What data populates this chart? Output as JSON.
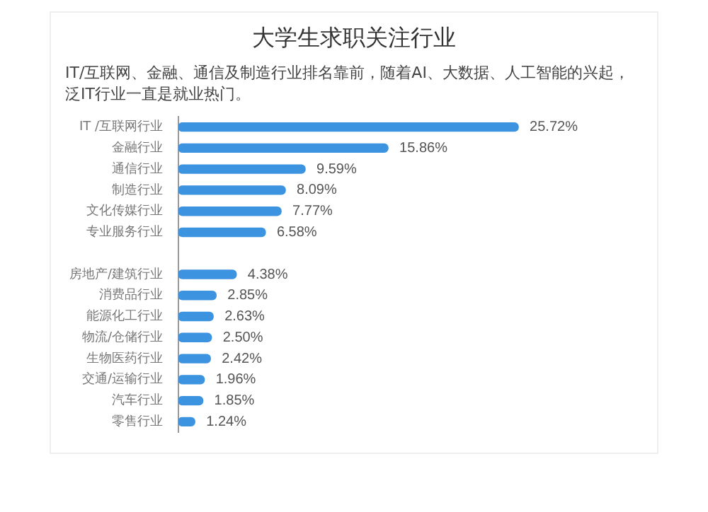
{
  "chart_data": {
    "type": "bar",
    "orientation": "horizontal",
    "title": "大学生求职关注行业",
    "subtitle": "IT/互联网、金融、通信及制造行业排名靠前，随着AI、大数据、人工智能的兴起，泛IT行业一直是就业热门。",
    "categories": [
      "IT /互联网行业",
      "金融行业",
      "通信行业",
      "制造行业",
      "文化传媒行业",
      "专业服务行业",
      null,
      "房地产/建筑行业",
      "消费品行业",
      "能源化工行业",
      "物流/仓储行业",
      "生物医药行业",
      "交通/运输行业",
      "汽车行业",
      "零售行业"
    ],
    "values": [
      25.72,
      15.86,
      9.59,
      8.09,
      7.77,
      6.58,
      null,
      4.38,
      2.85,
      2.63,
      2.5,
      2.42,
      1.96,
      1.85,
      1.24
    ],
    "value_labels": [
      "25.72%",
      "15.86%",
      "9.59%",
      "8.09%",
      "7.77%",
      "6.58%",
      null,
      "4.38%",
      "2.85%",
      "2.63%",
      "2.50%",
      "2.42%",
      "1.96%",
      "1.85%",
      "1.24%"
    ],
    "color": "#3c93e0"
  }
}
